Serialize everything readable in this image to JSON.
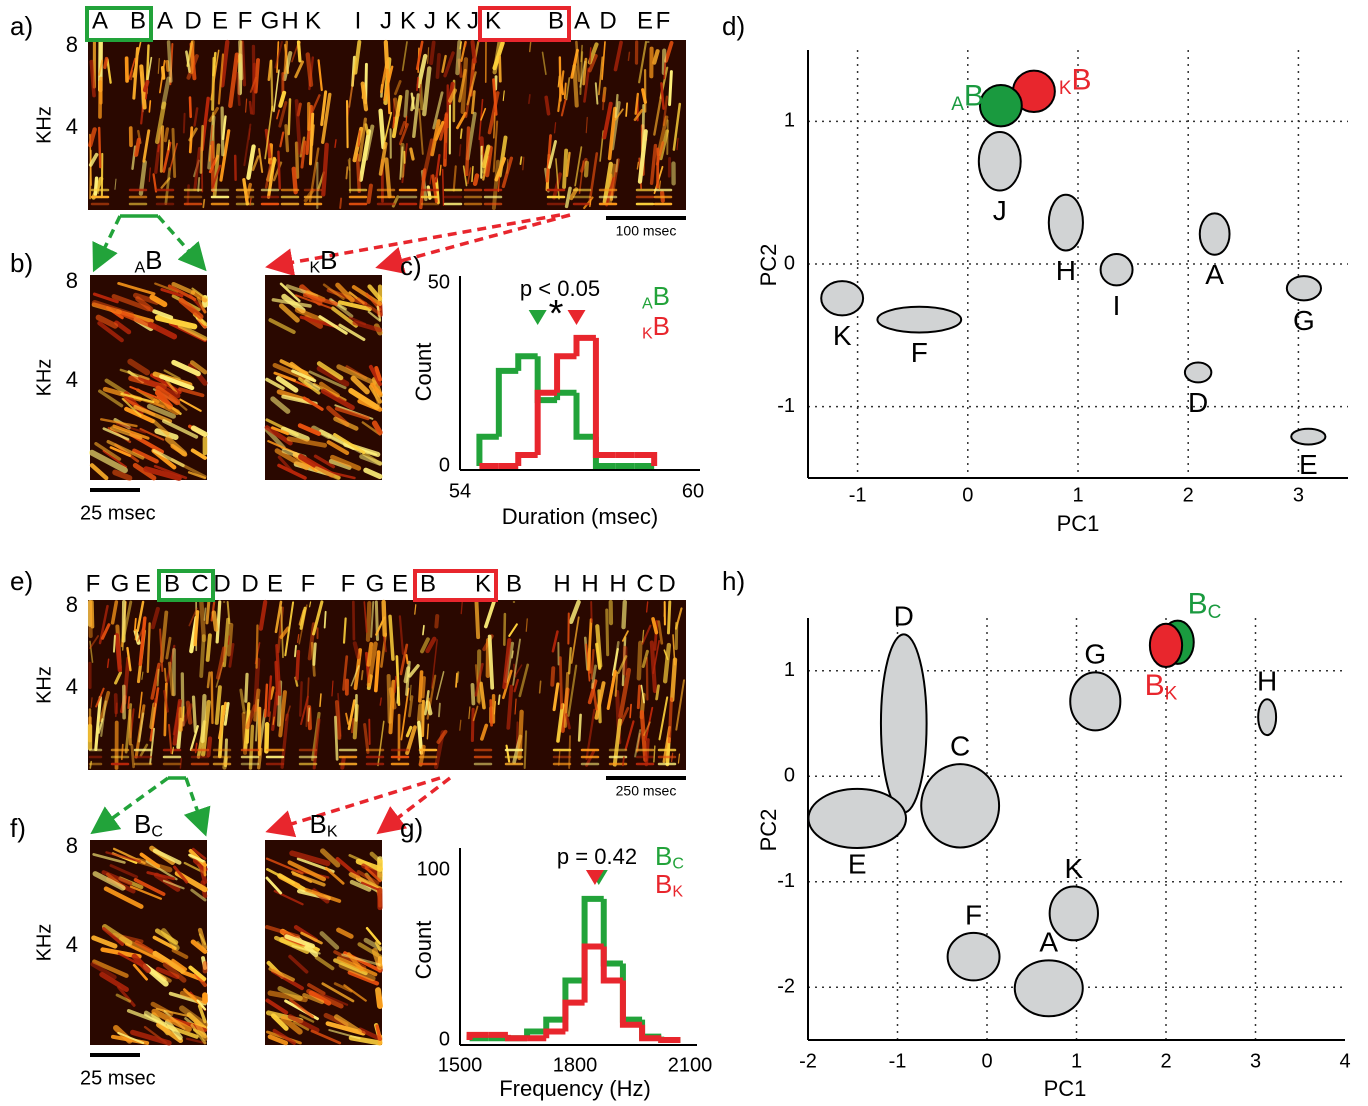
{
  "spectrograms": [
    {
      "panel": "a)",
      "syllables": [
        "A",
        "B",
        "A",
        "D",
        "E",
        "F",
        "G",
        "H",
        "K",
        "I",
        "J",
        "K",
        "J",
        "K",
        "J",
        "K",
        "B",
        "A",
        "D",
        "E",
        "F"
      ],
      "highlights": [
        {
          "first": 0,
          "last": 1,
          "color": "#22a33a"
        },
        {
          "first": 15,
          "last": 16,
          "color": "#e8262d"
        }
      ],
      "ylabel": "KHz",
      "ylim": [
        0,
        8.3
      ],
      "yticks": [
        8,
        4
      ],
      "scale_bar": "100 msec"
    },
    {
      "panel": "e)",
      "syllables": [
        "F",
        "G",
        "E",
        "B",
        "C",
        "D",
        "D",
        "E",
        "F",
        "F",
        "G",
        "E",
        "B",
        "K",
        "B",
        "H",
        "H",
        "H",
        "C",
        "D"
      ],
      "highlights": [
        {
          "first": 3,
          "last": 4,
          "color": "#22a33a"
        },
        {
          "first": 12,
          "last": 13,
          "color": "#e8262d"
        }
      ],
      "ylabel": "KHz",
      "ylim": [
        0,
        8.3
      ],
      "yticks": [
        8,
        4
      ],
      "scale_bar": "250 msec"
    }
  ],
  "crops": [
    {
      "panel": "b)",
      "ylabel": "KHz",
      "ylim": [
        0,
        8.3
      ],
      "yticks": [
        8,
        4
      ],
      "scale_bar": "25 msec",
      "items": [
        {
          "name": "B",
          "subscript": "A",
          "subscript_side": "before"
        },
        {
          "name": "B",
          "subscript": "K",
          "subscript_side": "before"
        }
      ]
    },
    {
      "panel": "f)",
      "ylabel": "KHz",
      "ylim": [
        0,
        8.3
      ],
      "yticks": [
        8,
        4
      ],
      "scale_bar": "25 msec",
      "items": [
        {
          "name": "B",
          "subscript": "C",
          "subscript_side": "after"
        },
        {
          "name": "B",
          "subscript": "K",
          "subscript_side": "after"
        }
      ]
    }
  ],
  "chart_data": [
    {
      "type": "histogram",
      "panel": "c)",
      "xlabel": "Duration (msec)",
      "ylabel": "Count",
      "bins": [
        54.5,
        55,
        55.5,
        56,
        56.5,
        57,
        57.5,
        58,
        58.5,
        59
      ],
      "xlim": [
        54,
        60
      ],
      "xticks": [
        54,
        60
      ],
      "ylim": [
        0,
        50
      ],
      "yticks": [
        0,
        50
      ],
      "annotations": [
        "p < 0.05",
        "*"
      ],
      "series": [
        {
          "name": "B",
          "subscript": "A",
          "subscript_side": "before",
          "color": "#22a33a",
          "values": [
            8,
            26,
            30,
            18,
            20,
            8,
            0,
            0,
            0
          ],
          "mean": 56.0
        },
        {
          "name": "B",
          "subscript": "K",
          "subscript_side": "before",
          "color": "#e8262d",
          "values": [
            0,
            0,
            3,
            20,
            30,
            35,
            3,
            3,
            3
          ],
          "mean": 57.0
        }
      ]
    },
    {
      "type": "ellipse",
      "panel": "d)",
      "xlabel": "PC1",
      "ylabel": "PC2",
      "xlim": [
        -1.45,
        3.45
      ],
      "xticks": [
        -1,
        0,
        1,
        2,
        3
      ],
      "ylim": [
        -1.5,
        1.5
      ],
      "yticks": [
        -1,
        0,
        1
      ],
      "grid": true,
      "clusters": [
        {
          "name": "K",
          "x": -1.14,
          "y": -0.24,
          "width": 0.38,
          "height": 0.24,
          "color": "#d1d3d4"
        },
        {
          "name": "F",
          "x": -0.44,
          "y": -0.39,
          "width": 0.76,
          "height": 0.18,
          "color": "#d1d3d4"
        },
        {
          "name": "J",
          "x": 0.29,
          "y": 0.72,
          "width": 0.38,
          "height": 0.41,
          "color": "#d1d3d4"
        },
        {
          "name": "H",
          "x": 0.89,
          "y": 0.29,
          "width": 0.31,
          "height": 0.39,
          "color": "#d1d3d4"
        },
        {
          "name": "I",
          "x": 1.35,
          "y": -0.04,
          "width": 0.29,
          "height": 0.22,
          "color": "#d1d3d4"
        },
        {
          "name": "A",
          "x": 2.24,
          "y": 0.21,
          "width": 0.27,
          "height": 0.29,
          "color": "#d1d3d4"
        },
        {
          "name": "G",
          "x": 3.05,
          "y": -0.17,
          "width": 0.31,
          "height": 0.17,
          "color": "#d1d3d4"
        },
        {
          "name": "D",
          "x": 2.09,
          "y": -0.76,
          "width": 0.24,
          "height": 0.14,
          "color": "#d1d3d4"
        },
        {
          "name": "E",
          "x": 3.09,
          "y": -1.21,
          "width": 0.31,
          "height": 0.11,
          "color": "#d1d3d4"
        },
        {
          "name": "B",
          "subscript": "K",
          "subscript_side": "before",
          "x": 0.6,
          "y": 1.21,
          "width": 0.38,
          "height": 0.29,
          "color": "#e8262d"
        },
        {
          "name": "B",
          "subscript": "A",
          "subscript_side": "before",
          "x": 0.3,
          "y": 1.11,
          "width": 0.38,
          "height": 0.29,
          "color": "#1a9a3f"
        }
      ]
    },
    {
      "type": "histogram",
      "panel": "g)",
      "xlabel": "Frequency (Hz)",
      "ylabel": "Count",
      "bins": [
        1525,
        1575,
        1625,
        1675,
        1725,
        1775,
        1825,
        1875,
        1925,
        1975,
        2025,
        2075
      ],
      "xlim": [
        1500,
        2100
      ],
      "xticks": [
        1500,
        1800,
        2100
      ],
      "ylim": [
        0,
        110
      ],
      "yticks": [
        0,
        100
      ],
      "annotations": [
        "p = 0.42"
      ],
      "series": [
        {
          "name": "B",
          "subscript": "C",
          "subscript_side": "after",
          "color": "#22a33a",
          "values": [
            1,
            1,
            1,
            5,
            12,
            35,
            83,
            45,
            12,
            2,
            0
          ],
          "mean": 1862
        },
        {
          "name": "B",
          "subscript": "K",
          "subscript_side": "after",
          "color": "#e8262d",
          "values": [
            3,
            3,
            1,
            1,
            5,
            22,
            55,
            35,
            9,
            1,
            0
          ],
          "mean": 1852
        }
      ]
    },
    {
      "type": "ellipse",
      "panel": "h)",
      "xlabel": "PC1",
      "ylabel": "PC2",
      "xlim": [
        -2,
        4
      ],
      "xticks": [
        -2,
        -1,
        0,
        1,
        2,
        3,
        4
      ],
      "ylim": [
        -2.5,
        1.5
      ],
      "yticks": [
        -2,
        -1,
        0,
        1
      ],
      "grid": true,
      "clusters": [
        {
          "name": "D",
          "x": -0.93,
          "y": 0.5,
          "width": 0.51,
          "height": 1.69,
          "color": "#d1d3d4"
        },
        {
          "name": "E",
          "x": -1.45,
          "y": -0.4,
          "width": 1.09,
          "height": 0.56,
          "color": "#d1d3d4"
        },
        {
          "name": "C",
          "x": -0.3,
          "y": -0.28,
          "width": 0.87,
          "height": 0.79,
          "color": "#d1d3d4"
        },
        {
          "name": "G",
          "x": 1.21,
          "y": 0.71,
          "width": 0.56,
          "height": 0.55,
          "color": "#d1d3d4"
        },
        {
          "name": "H",
          "x": 3.13,
          "y": 0.56,
          "width": 0.2,
          "height": 0.34,
          "color": "#d1d3d4"
        },
        {
          "name": "K",
          "x": 0.97,
          "y": -1.3,
          "width": 0.54,
          "height": 0.51,
          "color": "#d1d3d4"
        },
        {
          "name": "F",
          "x": -0.15,
          "y": -1.71,
          "width": 0.58,
          "height": 0.45,
          "color": "#d1d3d4"
        },
        {
          "name": "A",
          "x": 0.69,
          "y": -2.01,
          "width": 0.76,
          "height": 0.53,
          "color": "#d1d3d4"
        },
        {
          "name": "B",
          "subscript": "C",
          "subscript_side": "after",
          "x": 2.13,
          "y": 1.27,
          "width": 0.36,
          "height": 0.41,
          "color": "#1a9a3f"
        },
        {
          "name": "B",
          "subscript": "K",
          "subscript_side": "after",
          "x": 2.0,
          "y": 1.24,
          "width": 0.36,
          "height": 0.41,
          "color": "#e8262d"
        }
      ]
    }
  ]
}
